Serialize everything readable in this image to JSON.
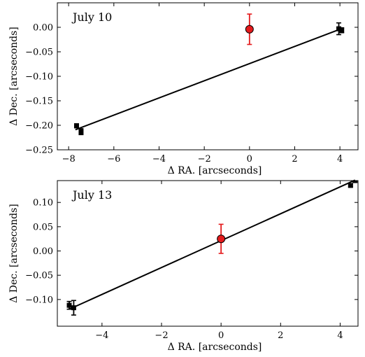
{
  "chart_data": [
    {
      "type": "scatter",
      "title": "July 10",
      "xlabel": "Δ RA. [arcseconds]",
      "ylabel": "Δ Dec. [arcseconds]",
      "xlim": [
        -8.5,
        4.8
      ],
      "ylim": [
        -0.25,
        0.05
      ],
      "xticks": [
        -8,
        -6,
        -4,
        -2,
        0,
        2,
        4
      ],
      "yticks": [
        -0.25,
        -0.2,
        -0.15,
        -0.1,
        -0.05,
        0.0
      ],
      "xtick_labels": [
        "−8",
        "−6",
        "−4",
        "−2",
        "0",
        "2",
        "4"
      ],
      "ytick_labels": [
        "−0.25",
        "−0.20",
        "−0.15",
        "−0.10",
        "−0.05",
        "0.00"
      ],
      "series": [
        {
          "marker": "square",
          "color": "#000000",
          "points": [
            {
              "x": -7.65,
              "y": -0.201,
              "yerr": 0.004
            },
            {
              "x": -7.45,
              "y": -0.213,
              "yerr": 0.006
            },
            {
              "x": 3.95,
              "y": -0.003,
              "yerr": 0.012
            },
            {
              "x": 4.08,
              "y": -0.006,
              "yerr": 0.005
            }
          ]
        },
        {
          "marker": "circle",
          "color": "#e41a1c",
          "points": [
            {
              "x": 0.0,
              "y": -0.004,
              "yerr": 0.031
            }
          ]
        }
      ],
      "fit_line": {
        "x": [
          -7.7,
          4.0
        ],
        "y": [
          -0.209,
          -0.004
        ]
      }
    },
    {
      "type": "scatter",
      "title": "July 13",
      "xlabel": "Δ RA. [arcseconds]",
      "ylabel": "Δ Dec. [arcseconds]",
      "xlim": [
        -5.5,
        4.6
      ],
      "ylim": [
        -0.155,
        0.145
      ],
      "xticks": [
        -4,
        -2,
        0,
        2,
        4
      ],
      "yticks": [
        -0.1,
        -0.05,
        0.0,
        0.05,
        0.1
      ],
      "xtick_labels": [
        "−4",
        "−2",
        "0",
        "2",
        "4"
      ],
      "ytick_labels": [
        "−0.10",
        "−0.05",
        "0.00",
        "0.05",
        "0.10"
      ],
      "series": [
        {
          "marker": "square",
          "color": "#000000",
          "points": [
            {
              "x": -5.1,
              "y": -0.112,
              "yerr": 0.008
            },
            {
              "x": -4.95,
              "y": -0.117,
              "yerr": 0.015
            },
            {
              "x": 4.35,
              "y": 0.135,
              "yerr": 0.003
            },
            {
              "x": 4.5,
              "y": 0.145,
              "yerr": 0.003
            }
          ]
        },
        {
          "marker": "circle",
          "color": "#e41a1c",
          "points": [
            {
              "x": 0.0,
              "y": 0.025,
              "yerr": 0.03
            }
          ]
        }
      ],
      "fit_line": {
        "x": [
          -5.1,
          4.5
        ],
        "y": [
          -0.12,
          0.146
        ]
      }
    }
  ]
}
